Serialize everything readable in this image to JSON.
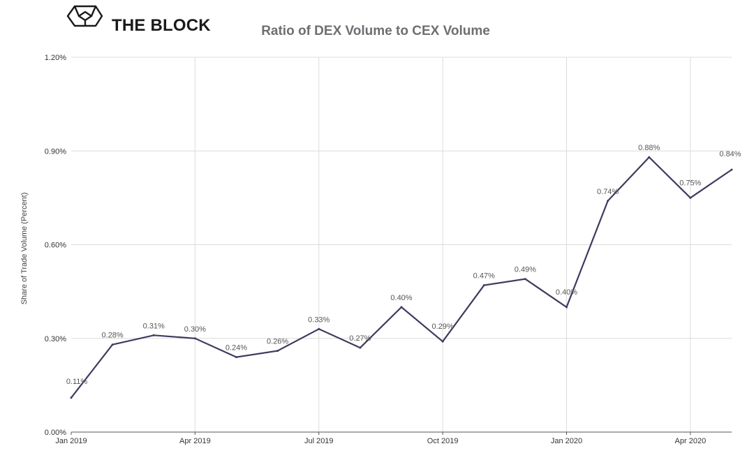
{
  "brand": {
    "name": "THE BLOCK",
    "logo_icon": "cube-icon"
  },
  "chart_data": {
    "type": "line",
    "title": "Ratio of DEX Volume to CEX Volume",
    "xlabel": "",
    "ylabel": "Share of Trade Volume (Percent)",
    "ylim": [
      0,
      1.2
    ],
    "y_ticks": [
      "0.00%",
      "0.30%",
      "0.60%",
      "0.90%",
      "1.20%"
    ],
    "y_tick_values": [
      0,
      0.3,
      0.6,
      0.9,
      1.2
    ],
    "x_ticks": [
      "Jan 2019",
      "Apr 2019",
      "Jul 2019",
      "Oct 2019",
      "Jan 2020",
      "Apr 2020"
    ],
    "x_tick_positions": [
      0,
      3,
      6,
      9,
      12,
      15
    ],
    "x_max": 16,
    "grid": true,
    "colors": {
      "line": "#3f3a5e",
      "grid": "#dcdcdc"
    },
    "series": [
      {
        "x": [
          "2019-01",
          "2019-02",
          "2019-03",
          "2019-04",
          "2019-05",
          "2019-06",
          "2019-07",
          "2019-08",
          "2019-09",
          "2019-10",
          "2019-11",
          "2019-12",
          "2020-01",
          "2020-02",
          "2020-03",
          "2020-04",
          "2020-05"
        ],
        "values": [
          0.11,
          0.28,
          0.31,
          0.3,
          0.24,
          0.26,
          0.33,
          0.27,
          0.4,
          0.29,
          0.47,
          0.49,
          0.4,
          0.74,
          0.88,
          0.75,
          0.84
        ],
        "labels": [
          "0.11%",
          "0.28%",
          "0.31%",
          "0.30%",
          "0.24%",
          "0.26%",
          "0.33%",
          "0.27%",
          "0.40%",
          "0.29%",
          "0.47%",
          "0.49%",
          "0.40%",
          "0.74%",
          "0.88%",
          "0.75%",
          "0.84%"
        ]
      }
    ]
  }
}
